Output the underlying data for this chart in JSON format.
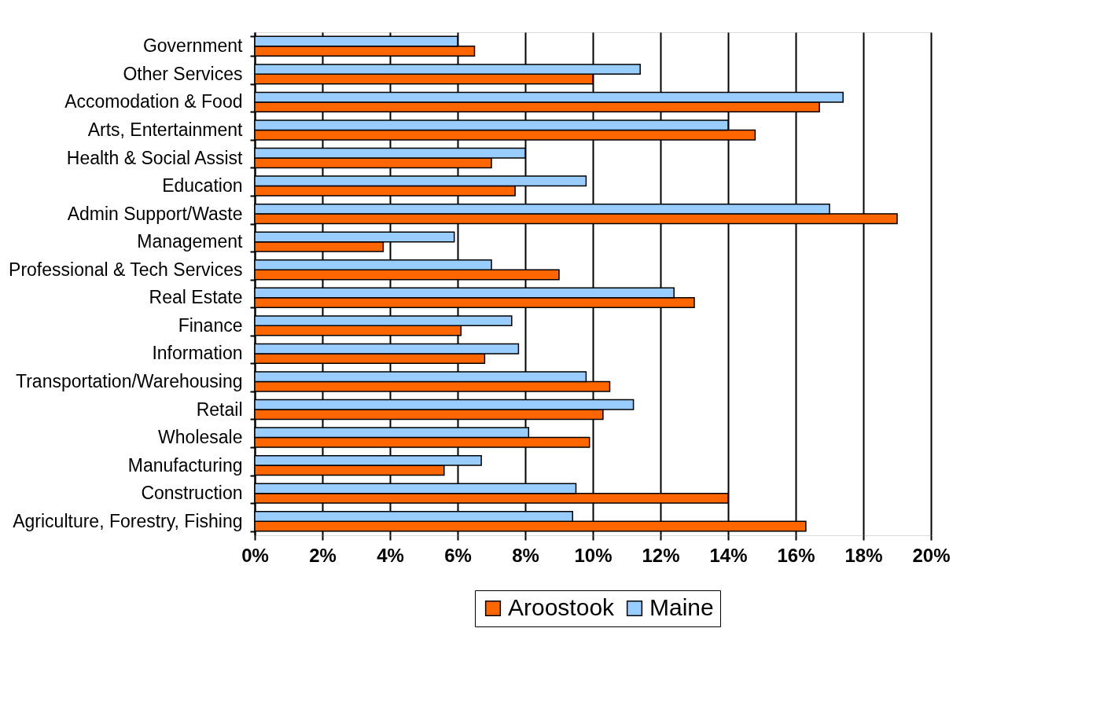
{
  "chart_data": {
    "type": "bar",
    "orientation": "horizontal",
    "categories": [
      "Government",
      "Other Services",
      "Accomodation & Food",
      "Arts, Entertainment",
      "Health & Social Assist",
      "Education",
      "Admin Support/Waste",
      "Management",
      "Professional & Tech Services",
      "Real Estate",
      "Finance",
      "Information",
      "Transportation/Warehousing",
      "Retail",
      "Wholesale",
      "Manufacturing",
      "Construction",
      "Agriculture, Forestry, Fishing"
    ],
    "series": [
      {
        "name": "Aroostook",
        "color": "#ff6600",
        "values": [
          6.5,
          10.0,
          16.7,
          14.8,
          7.0,
          7.7,
          19.0,
          3.8,
          9.0,
          13.0,
          6.1,
          6.8,
          10.5,
          10.3,
          9.9,
          5.6,
          14.0,
          16.3
        ]
      },
      {
        "name": "Maine",
        "color": "#99ccff",
        "values": [
          6.0,
          11.4,
          17.4,
          14.0,
          8.0,
          9.8,
          17.0,
          5.9,
          7.0,
          12.4,
          7.6,
          7.8,
          9.8,
          11.2,
          8.1,
          6.7,
          9.5,
          9.4
        ]
      }
    ],
    "xlim": [
      0,
      20
    ],
    "xticks": [
      {
        "value": 0,
        "label": "0%"
      },
      {
        "value": 2,
        "label": "2%"
      },
      {
        "value": 4,
        "label": "4%"
      },
      {
        "value": 6,
        "label": "6%"
      },
      {
        "value": 8,
        "label": "8%"
      },
      {
        "value": 10,
        "label": "10%"
      },
      {
        "value": 12,
        "label": "12%"
      },
      {
        "value": 14,
        "label": "14%"
      },
      {
        "value": 16,
        "label": "16%"
      },
      {
        "value": 18,
        "label": "18%"
      },
      {
        "value": 20,
        "label": "20%"
      }
    ],
    "grid": "x",
    "legend": "bottom"
  }
}
